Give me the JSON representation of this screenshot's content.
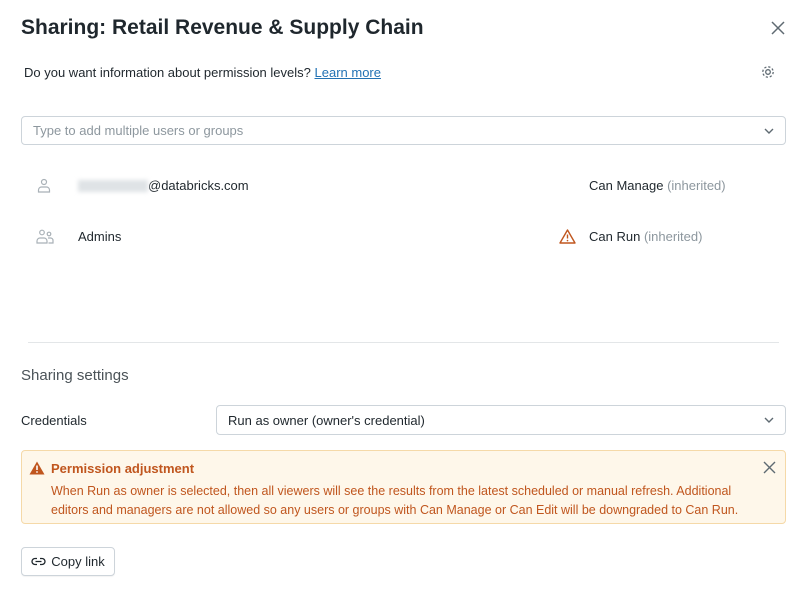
{
  "dialog": {
    "title": "Sharing: Retail Revenue & Supply Chain",
    "info_text": "Do you want information about permission levels?",
    "learn_more": "Learn more"
  },
  "search": {
    "placeholder": "Type to add multiple users or groups"
  },
  "members": [
    {
      "name_suffix": "@databricks.com",
      "permission": "Can Manage",
      "note": "(inherited)",
      "icon": "user-icon"
    },
    {
      "name": "Admins",
      "permission": "Can Run",
      "note": "(inherited)",
      "icon": "group-icon",
      "warning": true
    }
  ],
  "settings": {
    "heading": "Sharing settings",
    "credentials_label": "Credentials",
    "credentials_value": "Run as owner (owner's credential)"
  },
  "alert": {
    "title": "Permission adjustment",
    "body": "When Run as owner is selected, then all viewers will see the results from the latest scheduled or manual refresh. Additional editors and managers are not allowed so any users or groups with Can Manage or Can Edit will be downgraded to Can Run.",
    "color": "#c0561e",
    "background": "#fef7ea"
  },
  "footer": {
    "copy_link": "Copy link"
  },
  "colors": {
    "link": "#2272b4",
    "warning": "#c0561e"
  }
}
